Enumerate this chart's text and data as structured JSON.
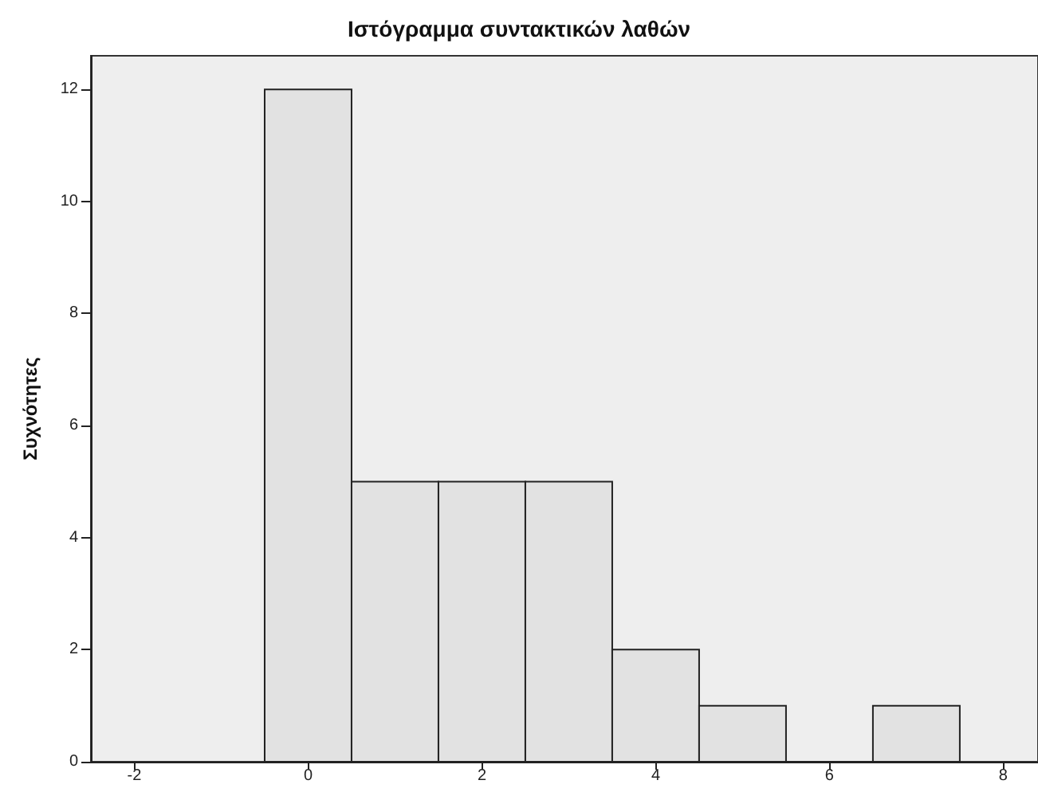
{
  "chart_data": {
    "type": "histogram",
    "title": "Ιστόγραμμα συντακτικών λαθών",
    "ylabel": "Συχνότητες",
    "bins": [
      -0.5,
      0.5,
      1.5,
      2.5,
      3.5,
      4.5,
      5.5,
      6.5,
      7.5
    ],
    "values": [
      12,
      5,
      5,
      5,
      2,
      1,
      0,
      1
    ],
    "color": "#e2e2e2",
    "xlim": [
      -2.5,
      8.4
    ],
    "xticks": [
      -2,
      0,
      2,
      4,
      6,
      8
    ],
    "ylim": [
      0,
      12.6
    ],
    "yticks": [
      0,
      2,
      4,
      6,
      8,
      10,
      12
    ],
    "grid": false,
    "legend": false
  }
}
